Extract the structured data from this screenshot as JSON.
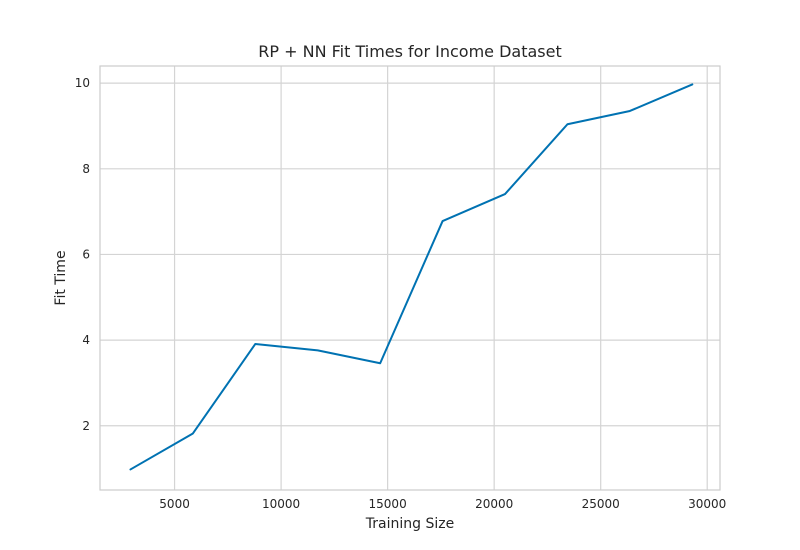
{
  "chart_data": {
    "type": "line",
    "title": "RP + NN Fit Times for Income Dataset",
    "xlabel": "Training Size",
    "ylabel": "Fit Time",
    "xlim": [
      1500,
      30600
    ],
    "ylim": [
      0.5,
      10.4
    ],
    "xticks": [
      5000,
      10000,
      15000,
      20000,
      25000,
      30000
    ],
    "yticks": [
      2,
      4,
      6,
      8,
      10
    ],
    "grid": true,
    "line_color": "#0072b2",
    "grid_color": "#d4d4d4",
    "spine_color": "#cccccc",
    "x": [
      2930,
      5860,
      8790,
      11720,
      14650,
      17580,
      20510,
      23440,
      26370,
      29300
    ],
    "y": [
      0.98,
      1.82,
      3.91,
      3.76,
      3.46,
      6.78,
      7.41,
      9.04,
      9.35,
      9.97
    ]
  }
}
